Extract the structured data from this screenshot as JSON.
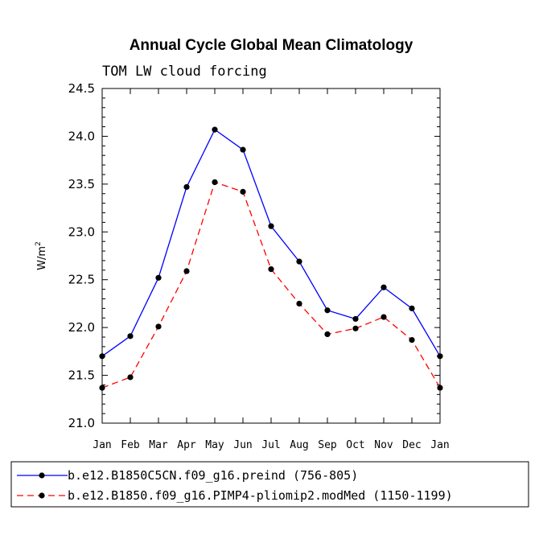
{
  "chart_data": {
    "type": "line",
    "title": "Annual Cycle Global Mean Climatology",
    "subtitle": "TOM LW cloud forcing",
    "xlabel": "",
    "ylabel": "W/m",
    "ylabel_superscript": "2",
    "ylim": [
      21.0,
      24.5
    ],
    "yticks": [
      "21.0",
      "21.5",
      "22.0",
      "22.5",
      "23.0",
      "23.5",
      "24.0",
      "24.5"
    ],
    "categories": [
      "Jan",
      "Feb",
      "Mar",
      "Apr",
      "May",
      "Jun",
      "Jul",
      "Aug",
      "Sep",
      "Oct",
      "Nov",
      "Dec",
      "Jan"
    ],
    "series": [
      {
        "name": "b.e12.B1850C5CN.f09_g16.preind (756-805)",
        "color": "#0000ff",
        "dash": "solid",
        "values": [
          21.7,
          21.91,
          22.52,
          23.47,
          24.07,
          23.86,
          23.06,
          22.69,
          22.18,
          22.09,
          22.42,
          22.2,
          21.7
        ]
      },
      {
        "name": "b.e12.B1850.f09_g16.PIMP4-pliomip2.modMed (1150-1199)",
        "color": "#ff0000",
        "dash": "dashed",
        "values": [
          21.37,
          21.48,
          22.01,
          22.59,
          23.52,
          23.42,
          22.61,
          22.25,
          21.93,
          21.99,
          22.11,
          21.87,
          21.37
        ]
      }
    ],
    "legend_position": "bottom"
  }
}
